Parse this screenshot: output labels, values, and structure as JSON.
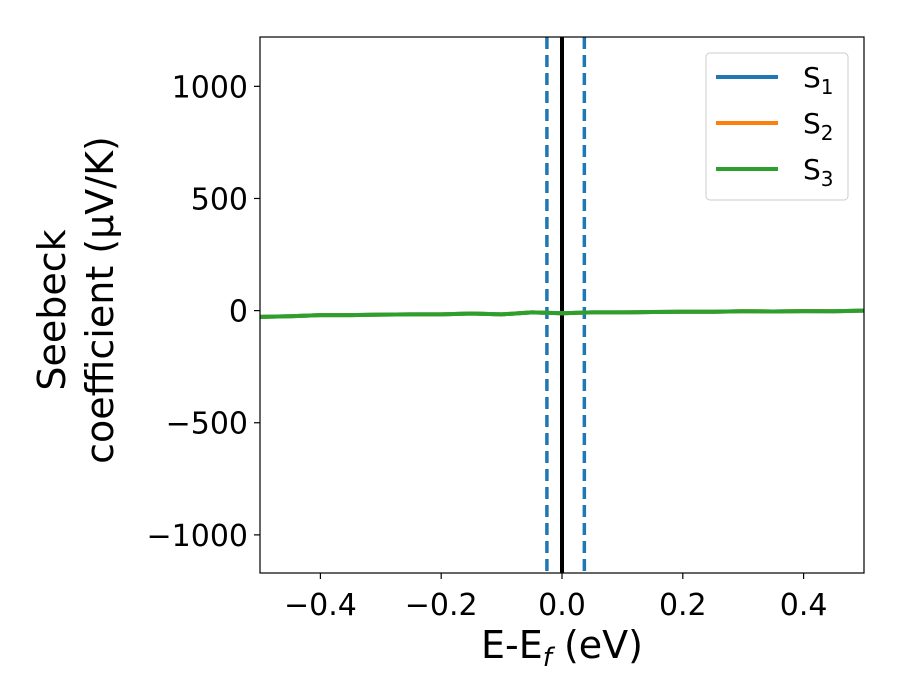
{
  "chart_data": {
    "type": "line",
    "title": "",
    "xlabel": "E-E_f (eV)",
    "xlabel_parts": {
      "main": "E-E",
      "sub": "f",
      "tail": " (eV)"
    },
    "ylabel_lines": [
      "Seebeck",
      "coefficient  (μV/K)"
    ],
    "xlim": [
      -0.5,
      0.5
    ],
    "ylim": [
      -1170,
      1220
    ],
    "xticks": [
      -0.4,
      -0.2,
      0.0,
      0.2,
      0.4
    ],
    "xtick_labels": [
      "−0.4",
      "−0.2",
      "0.0",
      "0.2",
      "0.4"
    ],
    "yticks": [
      1000,
      500,
      0,
      -500,
      -1000
    ],
    "ytick_labels": [
      "1000",
      "500",
      "0",
      "−500",
      "−1000"
    ],
    "grid": false,
    "legend_position": "top-right",
    "series": [
      {
        "name": "S1",
        "label_main": "S",
        "label_sub": "1",
        "color": "#1f77b4",
        "x": [
          -0.5,
          -0.45,
          -0.4,
          -0.35,
          -0.3,
          -0.25,
          -0.2,
          -0.15,
          -0.1,
          -0.05,
          0.0,
          0.05,
          0.1,
          0.15,
          0.2,
          0.25,
          0.3,
          0.35,
          0.4,
          0.45,
          0.5
        ],
        "y": [
          -28,
          -25,
          -20,
          -20,
          -18,
          -17,
          -17,
          -13,
          -17,
          -8,
          -12,
          -8,
          -8,
          -6,
          -5,
          -5,
          -3,
          -4,
          -2,
          -3,
          0
        ]
      },
      {
        "name": "S2",
        "label_main": "S",
        "label_sub": "2",
        "color": "#ff7f0e",
        "x": [
          -0.5,
          -0.45,
          -0.4,
          -0.35,
          -0.3,
          -0.25,
          -0.2,
          -0.15,
          -0.1,
          -0.05,
          0.0,
          0.05,
          0.1,
          0.15,
          0.2,
          0.25,
          0.3,
          0.35,
          0.4,
          0.45,
          0.5
        ],
        "y": [
          -28,
          -25,
          -20,
          -20,
          -18,
          -17,
          -17,
          -13,
          -17,
          -8,
          -12,
          -8,
          -8,
          -6,
          -5,
          -5,
          -3,
          -4,
          -2,
          -3,
          0
        ]
      },
      {
        "name": "S3",
        "label_main": "S",
        "label_sub": "3",
        "color": "#2ca02c",
        "x": [
          -0.5,
          -0.45,
          -0.4,
          -0.35,
          -0.3,
          -0.25,
          -0.2,
          -0.15,
          -0.1,
          -0.05,
          0.0,
          0.05,
          0.1,
          0.15,
          0.2,
          0.25,
          0.3,
          0.35,
          0.4,
          0.45,
          0.5
        ],
        "y": [
          -28,
          -25,
          -20,
          -20,
          -18,
          -17,
          -17,
          -13,
          -17,
          -8,
          -12,
          -8,
          -8,
          -6,
          -5,
          -5,
          -3,
          -4,
          -2,
          -3,
          0
        ]
      }
    ],
    "vlines": [
      {
        "x": -0.025,
        "style": "dashed",
        "color": "#1f77b4"
      },
      {
        "x": 0.0,
        "style": "solid",
        "color": "#000000"
      },
      {
        "x": 0.037,
        "style": "dashed",
        "color": "#1f77b4"
      }
    ]
  }
}
